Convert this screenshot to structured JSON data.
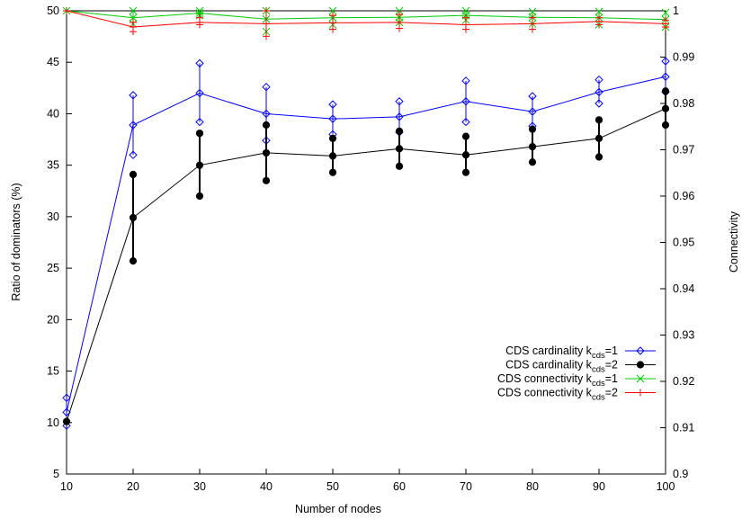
{
  "chart_data": {
    "type": "line",
    "title": "",
    "xlabel": "Number of nodes",
    "ylabel": "Ratio of dominators (%)",
    "y2label": "Connectivity",
    "x": [
      10,
      20,
      30,
      40,
      50,
      60,
      70,
      80,
      90,
      100
    ],
    "xlim": [
      10,
      100
    ],
    "ylim": [
      5,
      50
    ],
    "y2lim": [
      0.9,
      1.0
    ],
    "xticks": [
      "10",
      "20",
      "30",
      "40",
      "50",
      "60",
      "70",
      "80",
      "90",
      "100"
    ],
    "yticks": [
      "5",
      "10",
      "15",
      "20",
      "25",
      "30",
      "35",
      "40",
      "45",
      "50"
    ],
    "y2ticks": [
      "0.9",
      "0.91",
      "0.92",
      "0.93",
      "0.94",
      "0.95",
      "0.96",
      "0.97",
      "0.98",
      "0.99",
      "1"
    ],
    "grid": false,
    "legend_position": "bottom-right",
    "series": [
      {
        "legend_main": "CDS cardinality k",
        "legend_sub": "cds",
        "legend_suffix": "=1",
        "axis": "left",
        "color": "#0000ff",
        "marker": "diamond",
        "values": [
          11.0,
          38.9,
          42.0,
          40.0,
          39.5,
          39.7,
          41.2,
          40.2,
          42.1,
          43.6
        ],
        "err_low": [
          9.7,
          36.0,
          39.2,
          37.4,
          38.0,
          38.2,
          39.2,
          38.8,
          41.0,
          42.1
        ],
        "err_high": [
          12.4,
          41.8,
          44.9,
          42.6,
          40.9,
          41.2,
          43.2,
          41.7,
          43.3,
          45.1
        ]
      },
      {
        "legend_main": "CDS cardinality k",
        "legend_sub": "cds",
        "legend_suffix": "=2",
        "axis": "left",
        "color": "#000000",
        "marker": "filled-circle",
        "values": [
          10.1,
          29.9,
          35.0,
          36.2,
          35.9,
          36.6,
          36.0,
          36.8,
          37.6,
          40.5
        ],
        "err_low": [
          10.1,
          25.7,
          32.0,
          33.5,
          34.3,
          34.9,
          34.3,
          35.3,
          35.8,
          38.9
        ],
        "err_high": [
          10.1,
          34.1,
          38.1,
          38.9,
          37.6,
          38.3,
          37.8,
          38.5,
          39.4,
          42.2
        ]
      },
      {
        "legend_main": "CDS connectivity  k",
        "legend_sub": "cds",
        "legend_suffix": "=1",
        "axis": "right",
        "color": "#00cc00",
        "marker": "x",
        "values": [
          1.0,
          0.9985,
          0.9995,
          0.9982,
          0.9985,
          0.9986,
          0.999,
          0.9986,
          0.9985,
          0.9981
        ],
        "err_low": [
          1.0,
          0.9972,
          0.999,
          0.9955,
          0.997,
          0.9975,
          0.998,
          0.9972,
          0.997,
          0.9965
        ],
        "err_high": [
          1.0,
          1.0,
          1.0,
          1.0,
          1.0,
          1.0,
          1.0,
          0.9998,
          0.9998,
          0.9996
        ]
      },
      {
        "legend_main": "CDS connectivity  k",
        "legend_sub": "cds",
        "legend_suffix": "=2",
        "axis": "right",
        "color": "#ff0000",
        "marker": "plus",
        "values": [
          1.0,
          0.9965,
          0.9975,
          0.9972,
          0.9974,
          0.9975,
          0.997,
          0.9972,
          0.9977,
          0.9972
        ],
        "err_low": [
          1.0,
          0.9955,
          0.997,
          0.9945,
          0.996,
          0.9962,
          0.996,
          0.996,
          0.997,
          0.9965
        ],
        "err_high": [
          1.0,
          0.9975,
          0.9985,
          1.0,
          0.999,
          0.9992,
          0.9985,
          0.9985,
          0.9985,
          0.998
        ]
      }
    ]
  }
}
